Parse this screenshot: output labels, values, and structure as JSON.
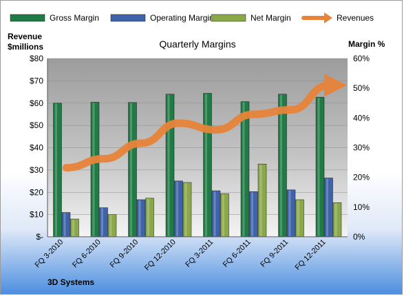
{
  "chart_data": {
    "type": "bar",
    "title": "Quarterly Margins",
    "footer": "3D Systems",
    "left_axis_label": [
      "Revenue",
      "$millions"
    ],
    "right_axis_label": "Margin %",
    "left_ticks": [
      "$-",
      "$10",
      "$20",
      "$30",
      "$40",
      "$50",
      "$60",
      "$70",
      "$80"
    ],
    "right_ticks": [
      "0%",
      "10%",
      "20%",
      "30%",
      "40%",
      "50%",
      "60%"
    ],
    "ylim_left": [
      0,
      80
    ],
    "ylim_right": [
      0,
      60
    ],
    "categories": [
      "FQ 3-2010",
      "FQ 6-2010",
      "FQ 9-2010",
      "FQ 12-2010",
      "FQ 3-2011",
      "FQ 6-2011",
      "FQ 9-2011",
      "FQ 12-2011"
    ],
    "series": [
      {
        "name": "Gross Margin",
        "axis": "right",
        "kind": "bar",
        "color": "#1f7a45",
        "values": [
          45.0,
          45.3,
          45.2,
          48.0,
          48.3,
          45.5,
          48.0,
          47.0
        ]
      },
      {
        "name": "Operating Margin",
        "axis": "right",
        "kind": "bar",
        "color": "#3f63a8",
        "values": [
          8.2,
          9.8,
          12.5,
          18.8,
          15.5,
          15.2,
          15.8,
          19.8
        ]
      },
      {
        "name": "Net Margin",
        "axis": "right",
        "kind": "bar",
        "color": "#8aa84a",
        "values": [
          6.0,
          7.5,
          13.0,
          18.3,
          14.5,
          24.5,
          12.5,
          11.5
        ]
      },
      {
        "name": "Revenues",
        "axis": "left",
        "kind": "line",
        "color": "#e8843a",
        "values": [
          31,
          35,
          42,
          51,
          48,
          55,
          57,
          68
        ]
      }
    ],
    "grid": true,
    "legend_position": "top"
  }
}
